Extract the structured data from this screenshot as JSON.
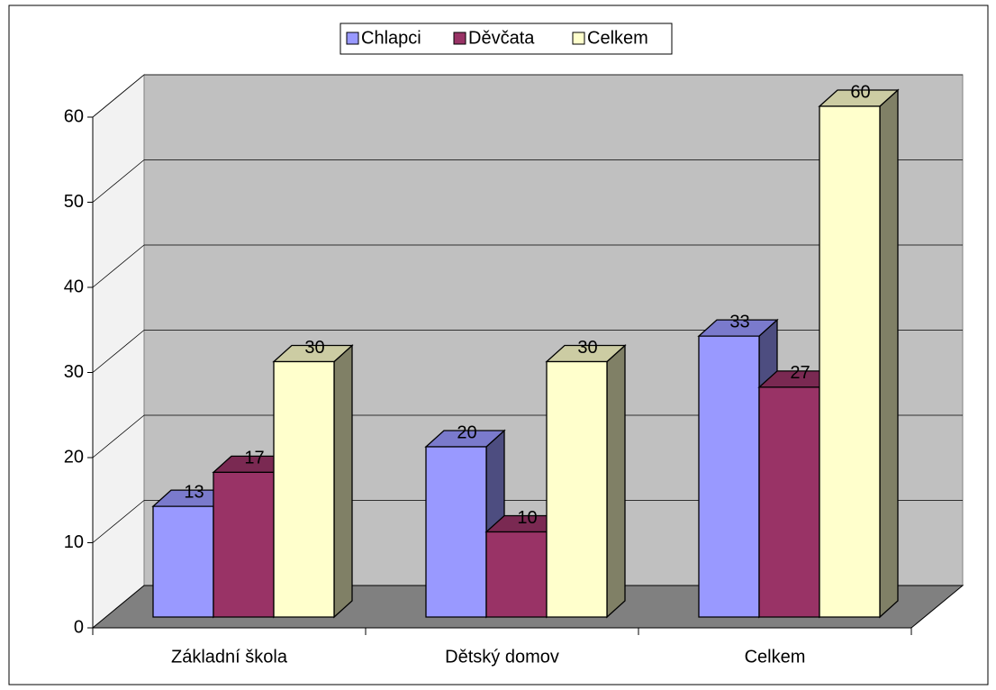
{
  "chart_data": {
    "type": "bar3d",
    "categories": [
      "Základní škola",
      "Dětský domov",
      "Celkem"
    ],
    "series": [
      {
        "name": "Chlapci",
        "color": "#9999ff",
        "values": [
          13,
          20,
          33
        ]
      },
      {
        "name": "Děvčata",
        "color": "#993366",
        "values": [
          17,
          10,
          27
        ]
      },
      {
        "name": "Celkem",
        "color": "#ffffcc",
        "values": [
          30,
          30,
          60
        ]
      }
    ],
    "ylim": [
      0,
      60
    ],
    "yticks": [
      0,
      10,
      20,
      30,
      40,
      50,
      60
    ],
    "grid": true,
    "legend": "top"
  }
}
